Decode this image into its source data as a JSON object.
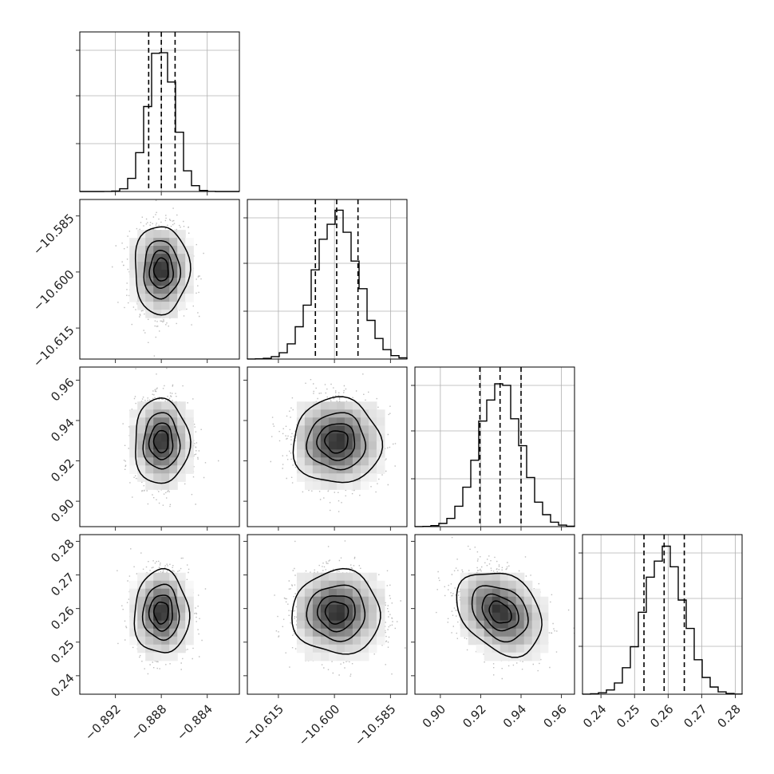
{
  "chart_data": {
    "type": "corner",
    "description_free": true,
    "parameters": [
      {
        "index": 0,
        "range": [
          -0.8951,
          -0.8812
        ],
        "ticks": [
          -0.892,
          -0.888,
          -0.884
        ],
        "tick_labels": [
          "−0.892",
          "−0.888",
          "−0.884"
        ],
        "quantiles": [
          -0.8891,
          -0.888,
          -0.8868
        ],
        "mean": -0.888,
        "sd": 0.00115
      },
      {
        "index": 1,
        "range": [
          -10.6233,
          -10.5806
        ],
        "ticks": [
          -10.615,
          -10.6,
          -10.585
        ],
        "tick_labels": [
          "−10.615",
          "−10.600",
          "−10.585"
        ],
        "quantiles": [
          -10.6051,
          -10.5994,
          -10.5937
        ],
        "mean": -10.5994,
        "sd": 0.0057
      },
      {
        "index": 2,
        "range": [
          0.8874,
          0.9665
        ],
        "ticks": [
          0.9,
          0.92,
          0.94,
          0.96
        ],
        "tick_labels": [
          "0.90",
          "0.92",
          "0.94",
          "0.96"
        ],
        "quantiles": [
          0.9196,
          0.9296,
          0.94
        ],
        "mean": 0.9296,
        "sd": 0.0102
      },
      {
        "index": 3,
        "range": [
          0.2345,
          0.282
        ],
        "ticks": [
          0.24,
          0.25,
          0.26,
          0.27,
          0.28
        ],
        "tick_labels": [
          "0.24",
          "0.25",
          "0.26",
          "0.27",
          "0.28"
        ],
        "quantiles": [
          0.2528,
          0.2588,
          0.2648
        ],
        "mean": 0.2588,
        "sd": 0.006
      }
    ],
    "correlations": {
      "0-1": 0.0,
      "0-2": 0.0,
      "0-3": 0.0,
      "1-2": 0.0,
      "1-3": 0.0,
      "2-3": -0.3
    },
    "histogram_bins": 20,
    "contour_levels_sigma": [
      0.5,
      1.0,
      1.5,
      2.0
    ],
    "colors": {
      "line": "#000000",
      "grid": "#b0b0b0",
      "points": "#bdbdbd"
    },
    "grid": true
  }
}
